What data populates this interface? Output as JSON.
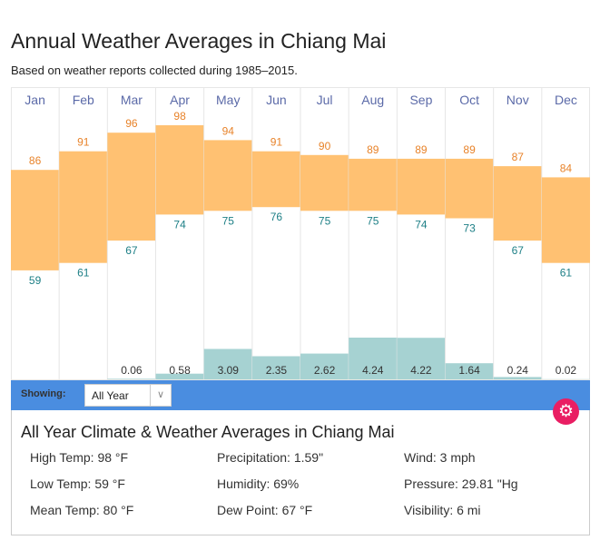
{
  "title": "Annual Weather Averages in Chiang Mai",
  "subtitle": "Based on weather reports collected during 1985–2015.",
  "chart_data": {
    "type": "bar",
    "categories": [
      "Jan",
      "Feb",
      "Mar",
      "Apr",
      "May",
      "Jun",
      "Jul",
      "Aug",
      "Sep",
      "Oct",
      "Nov",
      "Dec"
    ],
    "series": [
      {
        "name": "High Temp (°F)",
        "values": [
          86,
          91,
          96,
          98,
          94,
          91,
          90,
          89,
          89,
          89,
          87,
          84
        ],
        "color": "#ffc172",
        "label_color": "#e8832a"
      },
      {
        "name": "Low Temp (°F)",
        "values": [
          59,
          61,
          67,
          74,
          75,
          76,
          75,
          75,
          74,
          73,
          67,
          61
        ],
        "color": "#ffc172",
        "label_color": "#1d7f86"
      },
      {
        "name": "Precipitation (in)",
        "values": [
          null,
          null,
          0.06,
          0.58,
          3.09,
          2.35,
          2.62,
          4.24,
          4.22,
          1.64,
          0.24,
          0.02
        ],
        "labels": [
          "",
          "",
          "0.06",
          "0.58",
          "3.09",
          "2.35",
          "2.62",
          "4.24",
          "4.22",
          "1.64",
          "0.24",
          "0.02"
        ],
        "color": "#a6d2d2",
        "label_color": "#333333"
      }
    ],
    "month_color": "#5b6aa8"
  },
  "controls": {
    "showing_label": "Showing:",
    "selected": "All Year",
    "chevron": "∨",
    "gear": "⚙"
  },
  "details": {
    "title": "All Year Climate & Weather Averages in Chiang Mai",
    "items": [
      "High Temp: 98 °F",
      "Precipitation: 1.59\"",
      "Wind: 3 mph",
      "Low Temp: 59 °F",
      "Humidity: 69%",
      "Pressure: 29.81 \"Hg",
      "Mean Temp: 80 °F",
      "Dew Point: 67 °F",
      "Visibility: 6 mi"
    ]
  }
}
